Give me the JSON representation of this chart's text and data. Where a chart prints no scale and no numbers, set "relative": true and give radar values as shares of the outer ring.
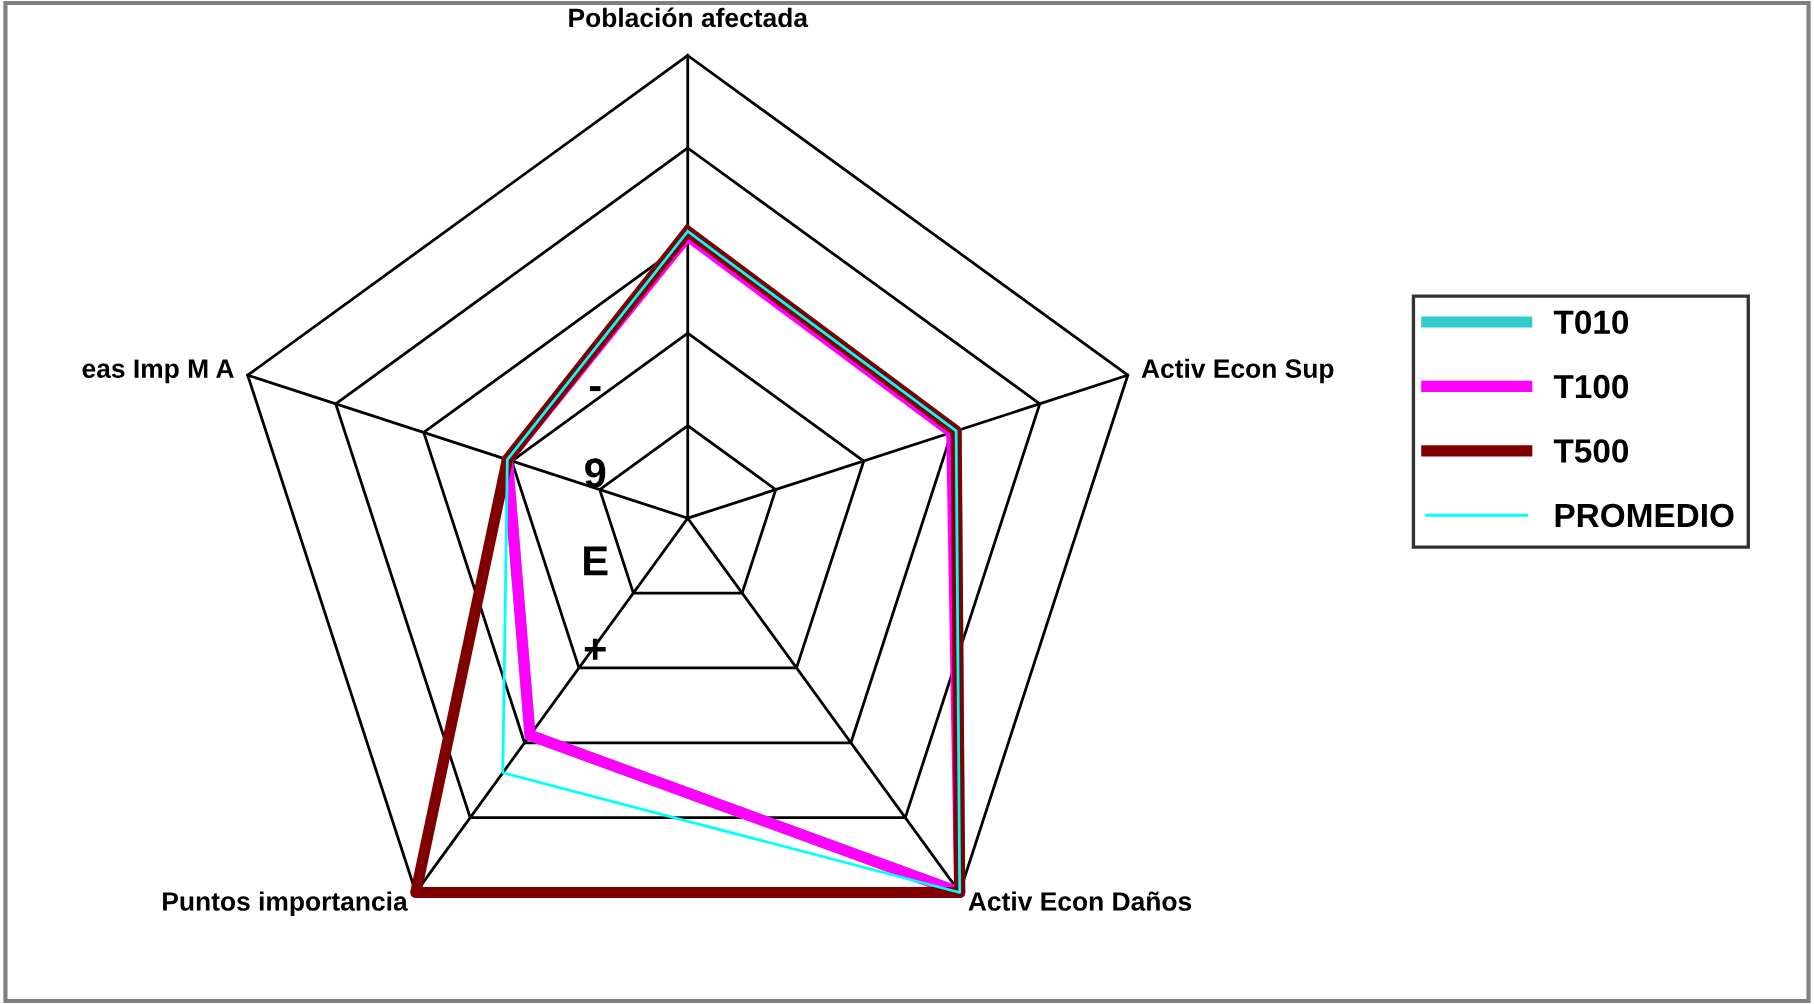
{
  "chart_data": {
    "type": "radar",
    "categories": [
      "Población afectada",
      "Activ Econ Sup",
      "Activ Econ Daños",
      "Puntos importancia",
      "eas Imp M A"
    ],
    "relative": true,
    "annotations": [
      "-",
      "9",
      "E",
      "+"
    ],
    "series": [
      {
        "name": "T010",
        "color": "#33cccc",
        "values": [
          0.62,
          0.61,
          1.0,
          0.58,
          0.41
        ]
      },
      {
        "name": "T100",
        "color": "#ff00ff",
        "values": [
          0.61,
          0.6,
          1.0,
          0.58,
          0.41
        ]
      },
      {
        "name": "T500",
        "color": "#800000",
        "values": [
          0.62,
          0.61,
          1.0,
          1.0,
          0.41
        ]
      },
      {
        "name": "PROMEDIO",
        "color": "#00ffff",
        "values": [
          0.62,
          0.61,
          1.0,
          0.68,
          0.41
        ]
      }
    ],
    "legend": "right"
  }
}
